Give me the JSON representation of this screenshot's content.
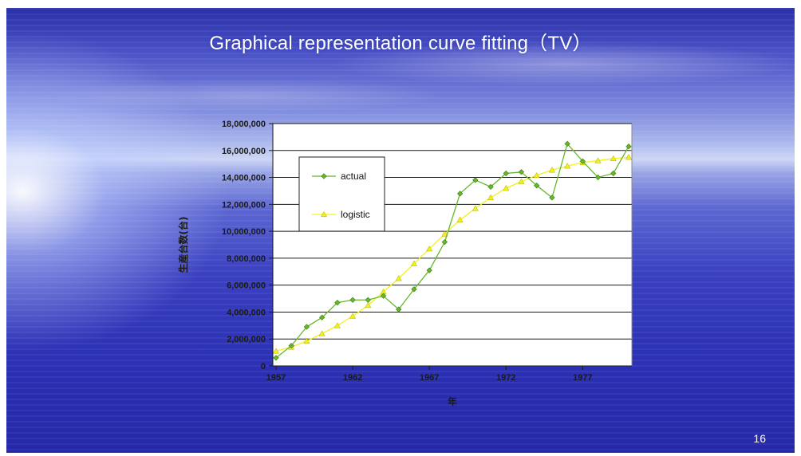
{
  "slide": {
    "title": "Graphical representation curve fitting（TV）",
    "page_number": "16"
  },
  "chart_data": {
    "type": "line",
    "title": "",
    "xlabel": "年",
    "ylabel": "生産台数(台)",
    "xlim": [
      1957,
      1980
    ],
    "ylim": [
      0,
      18000000
    ],
    "x_ticks": [
      1957,
      1962,
      1967,
      1972,
      1977
    ],
    "x_tick_labels": [
      "1957",
      "1962",
      "1967",
      "1972",
      "1977"
    ],
    "y_ticks": [
      0,
      2000000,
      4000000,
      6000000,
      8000000,
      10000000,
      12000000,
      14000000,
      16000000,
      18000000
    ],
    "y_tick_labels": [
      "0",
      "2,000,000",
      "4,000,000",
      "6,000,000",
      "8,000,000",
      "10,000,000",
      "12,000,000",
      "14,000,000",
      "16,000,000",
      "18,000,000"
    ],
    "grid": "horizontal",
    "legend": "upper-left",
    "x": [
      1957,
      1958,
      1959,
      1960,
      1961,
      1962,
      1963,
      1964,
      1965,
      1966,
      1967,
      1968,
      1969,
      1970,
      1971,
      1972,
      1973,
      1974,
      1975,
      1976,
      1977,
      1978,
      1979,
      1980
    ],
    "series": [
      {
        "name": "actual",
        "marker": "diamond",
        "color": "#66b82a",
        "values": [
          600000,
          1500000,
          2900000,
          3600000,
          4700000,
          4900000,
          4900000,
          5200000,
          4200000,
          5700000,
          7100000,
          9200000,
          12800000,
          13800000,
          13300000,
          14300000,
          14400000,
          13400000,
          12500000,
          16500000,
          15200000,
          14000000,
          14300000,
          16300000
        ]
      },
      {
        "name": "logistic",
        "marker": "triangle",
        "color": "#f2f21a",
        "values": [
          1100000,
          1400000,
          1850000,
          2400000,
          3000000,
          3700000,
          4500000,
          5500000,
          6500000,
          7600000,
          8700000,
          9800000,
          10850000,
          11700000,
          12500000,
          13200000,
          13700000,
          14150000,
          14550000,
          14850000,
          15100000,
          15250000,
          15400000,
          15500000
        ]
      }
    ]
  }
}
